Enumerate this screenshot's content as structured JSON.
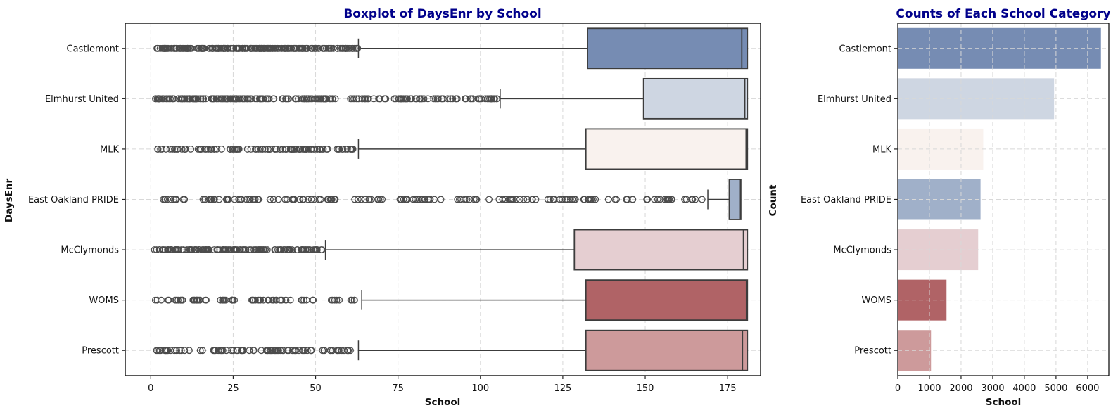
{
  "figure": {
    "background": "#ffffff",
    "title_color": "#00008b"
  },
  "palette": [
    "#768cb3",
    "#ced6e2",
    "#f9f2ee",
    "#a0b0c9",
    "#e5ced1",
    "#b06366",
    "#cd9a9b"
  ],
  "chart_data": [
    {
      "type": "boxplot",
      "orientation": "horizontal",
      "title": "Boxplot of DaysEnr by School",
      "xlabel": "School",
      "ylabel": "DaysEnr",
      "xlim": [
        -7.75,
        185
      ],
      "xticks": [
        0,
        25,
        50,
        75,
        100,
        125,
        150,
        175
      ],
      "grid": true,
      "categories": [
        "Castlemont",
        "Elmhurst United",
        "MLK",
        "East Oakland PRIDE",
        "McClymonds",
        "WOMS",
        "Prescott"
      ],
      "boxes": [
        {
          "category": "Castlemont",
          "whisker_low": 63,
          "q1": 132.5,
          "median": 179.3,
          "q3": 181,
          "whisker_high": 181,
          "outlier_segments": [
            {
              "from": 1,
              "to": 63,
              "n": 230
            }
          ]
        },
        {
          "category": "Elmhurst United",
          "whisker_low": 106,
          "q1": 149.5,
          "median": 180.2,
          "q3": 181,
          "whisker_high": 181,
          "outlier_segments": [
            {
              "from": 1,
              "to": 57,
              "n": 155
            },
            {
              "from": 60,
              "to": 105,
              "n": 85
            }
          ]
        },
        {
          "category": "MLK",
          "whisker_low": 63,
          "q1": 132,
          "median": 180.6,
          "q3": 181,
          "whisker_high": 181,
          "outlier_segments": [
            {
              "from": 1,
              "to": 62,
              "n": 115
            }
          ]
        },
        {
          "category": "East Oakland PRIDE",
          "whisker_low": 169,
          "q1": 175.5,
          "median": 178.9,
          "q3": 179,
          "whisker_high": 179,
          "outlier_segments": [
            {
              "from": 3,
              "to": 33,
              "n": 38
            },
            {
              "from": 36,
              "to": 56,
              "n": 26
            },
            {
              "from": 61,
              "to": 88,
              "n": 32
            },
            {
              "from": 91,
              "to": 117,
              "n": 26
            },
            {
              "from": 120,
              "to": 168,
              "n": 48
            }
          ]
        },
        {
          "category": "McClymonds",
          "whisker_low": 53,
          "q1": 128.5,
          "median": 179.8,
          "q3": 181,
          "whisker_high": 181,
          "outlier_segments": [
            {
              "from": 1,
              "to": 52,
              "n": 150
            }
          ]
        },
        {
          "category": "WOMS",
          "whisker_low": 64,
          "q1": 132,
          "median": 180.7,
          "q3": 181,
          "whisker_high": 181,
          "outlier_segments": [
            {
              "from": 1,
              "to": 17,
              "n": 24
            },
            {
              "from": 20,
              "to": 26,
              "n": 13
            },
            {
              "from": 30,
              "to": 50,
              "n": 28
            },
            {
              "from": 54,
              "to": 62,
              "n": 10
            }
          ]
        },
        {
          "category": "Prescott",
          "whisker_low": 63,
          "q1": 132,
          "median": 179.5,
          "q3": 181,
          "whisker_high": 181,
          "outlier_segments": [
            {
              "from": 1,
              "to": 62,
              "n": 90
            }
          ]
        }
      ]
    },
    {
      "type": "bar",
      "orientation": "horizontal",
      "title": "Counts of Each School Category",
      "xlabel": "School",
      "ylabel": "Count",
      "xlim": [
        0,
        6670
      ],
      "xticks": [
        0,
        1000,
        2000,
        3000,
        4000,
        5000,
        6000
      ],
      "grid": true,
      "categories": [
        "Castlemont",
        "Elmhurst United",
        "MLK",
        "East Oakland PRIDE",
        "McClymonds",
        "WOMS",
        "Prescott"
      ],
      "values": [
        6420,
        4940,
        2700,
        2615,
        2540,
        1540,
        1050
      ]
    }
  ]
}
